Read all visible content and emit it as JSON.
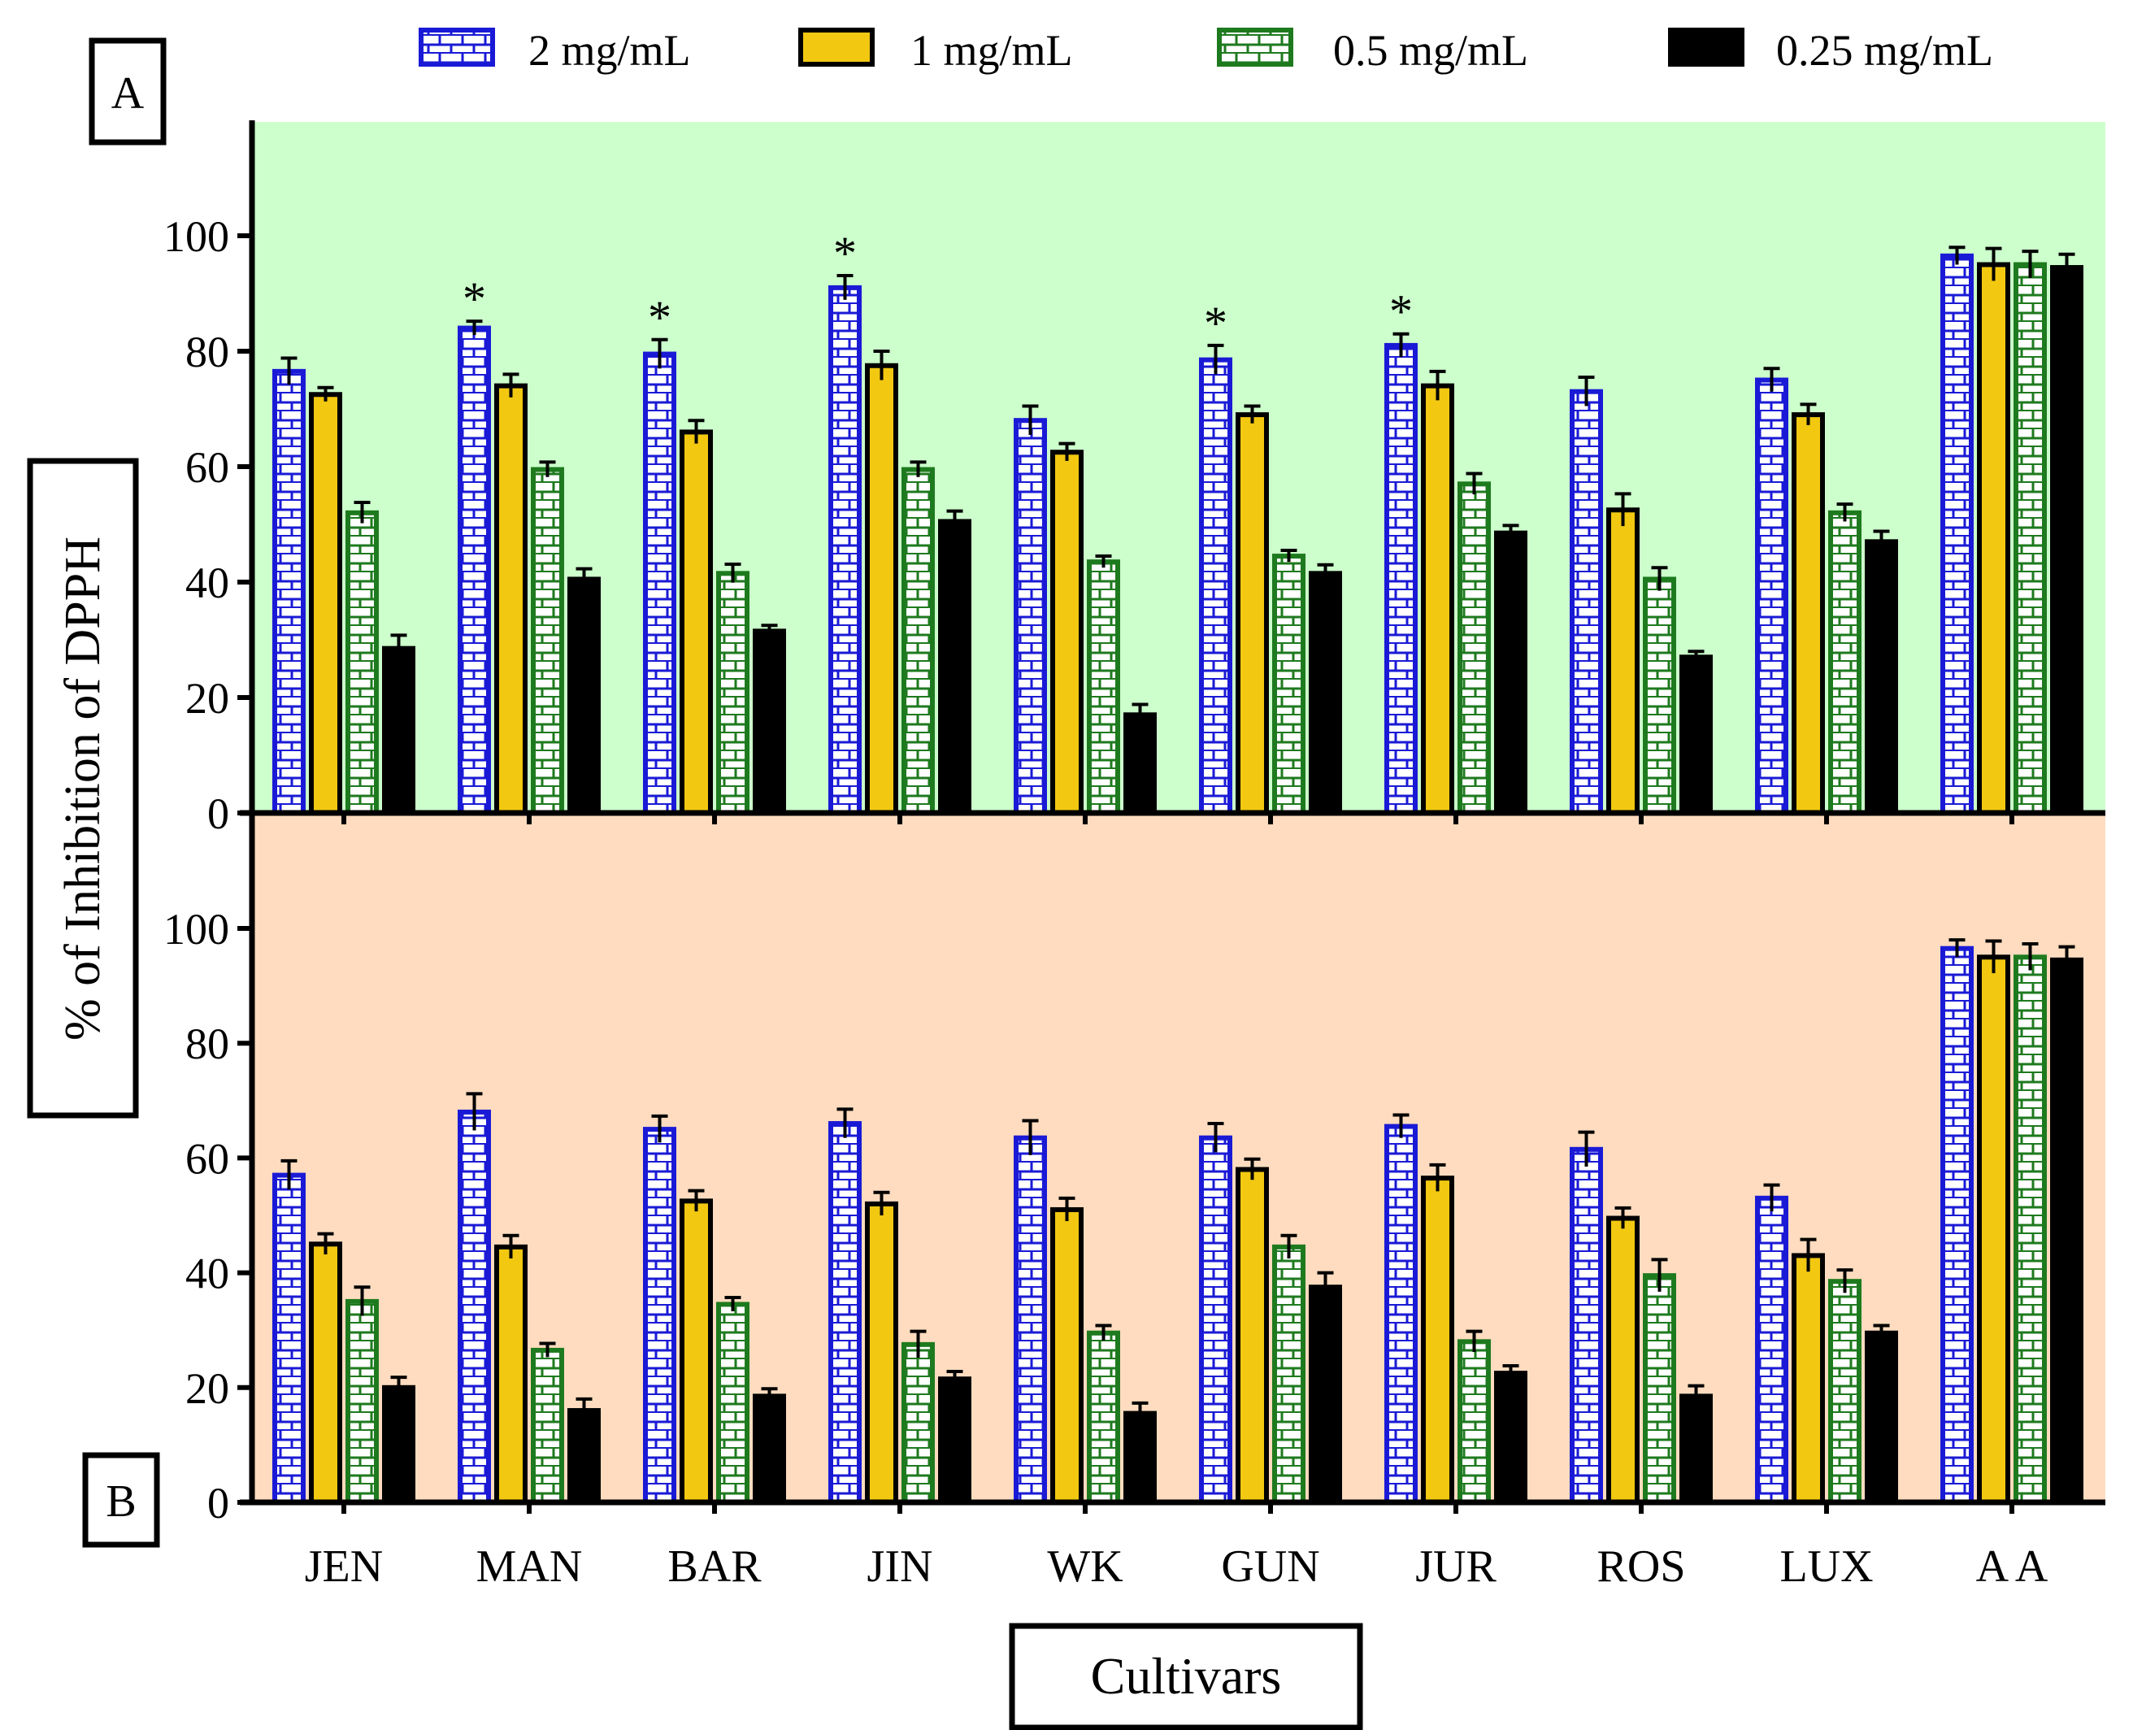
{
  "figure": {
    "ylabel": "% of Inhibition of DPPH",
    "xlabel": "Cultivars",
    "panel_labels": [
      "A",
      "B"
    ]
  },
  "legend": [
    {
      "label": "2 mg/mL",
      "color": "#1a1ad6",
      "pattern": "brick-white"
    },
    {
      "label": "1 mg/mL",
      "color": "#f2c811",
      "pattern": "solid"
    },
    {
      "label": "0.5 mg/mL",
      "color": "#1e7a1e",
      "pattern": "brick-green"
    },
    {
      "label": "0.25 mg/mL",
      "color": "#000000",
      "pattern": "solid"
    }
  ],
  "chart_data": [
    {
      "type": "bar",
      "panel": "A",
      "background": "#ccffcc",
      "categories": [
        "JEN",
        "MAN",
        "BAR",
        "JIN",
        "WK",
        "GUN",
        "JUR",
        "ROS",
        "LUX",
        "A A"
      ],
      "ylim": [
        0,
        120
      ],
      "yticks": [
        0,
        20,
        40,
        60,
        80,
        100
      ],
      "series": [
        {
          "name": "2 mg/mL",
          "values": [
            76.5,
            84,
            79.5,
            91,
            68,
            78.5,
            81,
            73,
            75,
            96.5
          ],
          "errors": [
            2.3,
            1.2,
            2.5,
            2.1,
            2.5,
            2.5,
            2,
            2.5,
            2,
            1.5
          ]
        },
        {
          "name": "1 mg/mL",
          "values": [
            72.5,
            74,
            66,
            77.5,
            62.5,
            69,
            74,
            52.5,
            69,
            95
          ],
          "errors": [
            1.2,
            2,
            2,
            2.5,
            1.5,
            1.5,
            2.5,
            2.8,
            1.8,
            2.8
          ]
        },
        {
          "name": "0.5 mg/mL",
          "values": [
            52,
            59.5,
            41.5,
            59.5,
            43.5,
            44.5,
            57,
            40.5,
            52,
            95
          ],
          "errors": [
            1.8,
            1.3,
            1.6,
            1.3,
            1,
            1,
            1.8,
            2,
            1.5,
            2.3
          ]
        },
        {
          "name": "0.25 mg/mL",
          "values": [
            28.5,
            40.5,
            31.5,
            50.5,
            17,
            41.5,
            48.5,
            27,
            47,
            94.5
          ],
          "errors": [
            2.3,
            1.8,
            1,
            1.8,
            1.8,
            1.5,
            1.3,
            1,
            1.8,
            2.3
          ]
        }
      ],
      "annotations": [
        {
          "text": "*",
          "category": "MAN",
          "series": "2 mg/mL"
        },
        {
          "text": "*",
          "category": "BAR",
          "series": "2 mg/mL"
        },
        {
          "text": "*",
          "category": "JIN",
          "series": "2 mg/mL"
        },
        {
          "text": "*",
          "category": "GUN",
          "series": "2 mg/mL"
        },
        {
          "text": "*",
          "category": "JUR",
          "series": "2 mg/mL"
        }
      ]
    },
    {
      "type": "bar",
      "panel": "B",
      "background": "#ffdcbf",
      "categories": [
        "JEN",
        "MAN",
        "BAR",
        "JIN",
        "WK",
        "GUN",
        "JUR",
        "ROS",
        "LUX",
        "A A"
      ],
      "ylim": [
        0,
        120
      ],
      "yticks": [
        0,
        20,
        40,
        60,
        80,
        100
      ],
      "series": [
        {
          "name": "2 mg/mL",
          "values": [
            57,
            68,
            65,
            66,
            63.5,
            63.5,
            65.5,
            61.5,
            53,
            96.5
          ],
          "errors": [
            2.5,
            3.2,
            2.3,
            2.5,
            3,
            2.5,
            2,
            3,
            2.3,
            1.5
          ]
        },
        {
          "name": "1 mg/mL",
          "values": [
            45,
            44.5,
            52.5,
            52,
            51,
            58,
            56.5,
            49.5,
            43,
            95
          ],
          "errors": [
            1.8,
            2,
            1.8,
            2,
            2,
            1.8,
            2.3,
            1.8,
            2.8,
            2.8
          ]
        },
        {
          "name": "0.5 mg/mL",
          "values": [
            35,
            26.5,
            34.5,
            27.5,
            29.5,
            44.5,
            28,
            39.5,
            38.5,
            95
          ],
          "errors": [
            2.5,
            1.2,
            1.2,
            2.3,
            1.3,
            2,
            1.8,
            2.8,
            2,
            2.3
          ]
        },
        {
          "name": "0.25 mg/mL",
          "values": [
            20,
            16,
            18.5,
            21.5,
            15.5,
            37.5,
            22.5,
            18.5,
            29.5,
            94.5
          ],
          "errors": [
            1.8,
            2,
            1.3,
            1.3,
            1.8,
            2.5,
            1.3,
            1.8,
            1.3,
            2.3
          ]
        }
      ]
    }
  ]
}
